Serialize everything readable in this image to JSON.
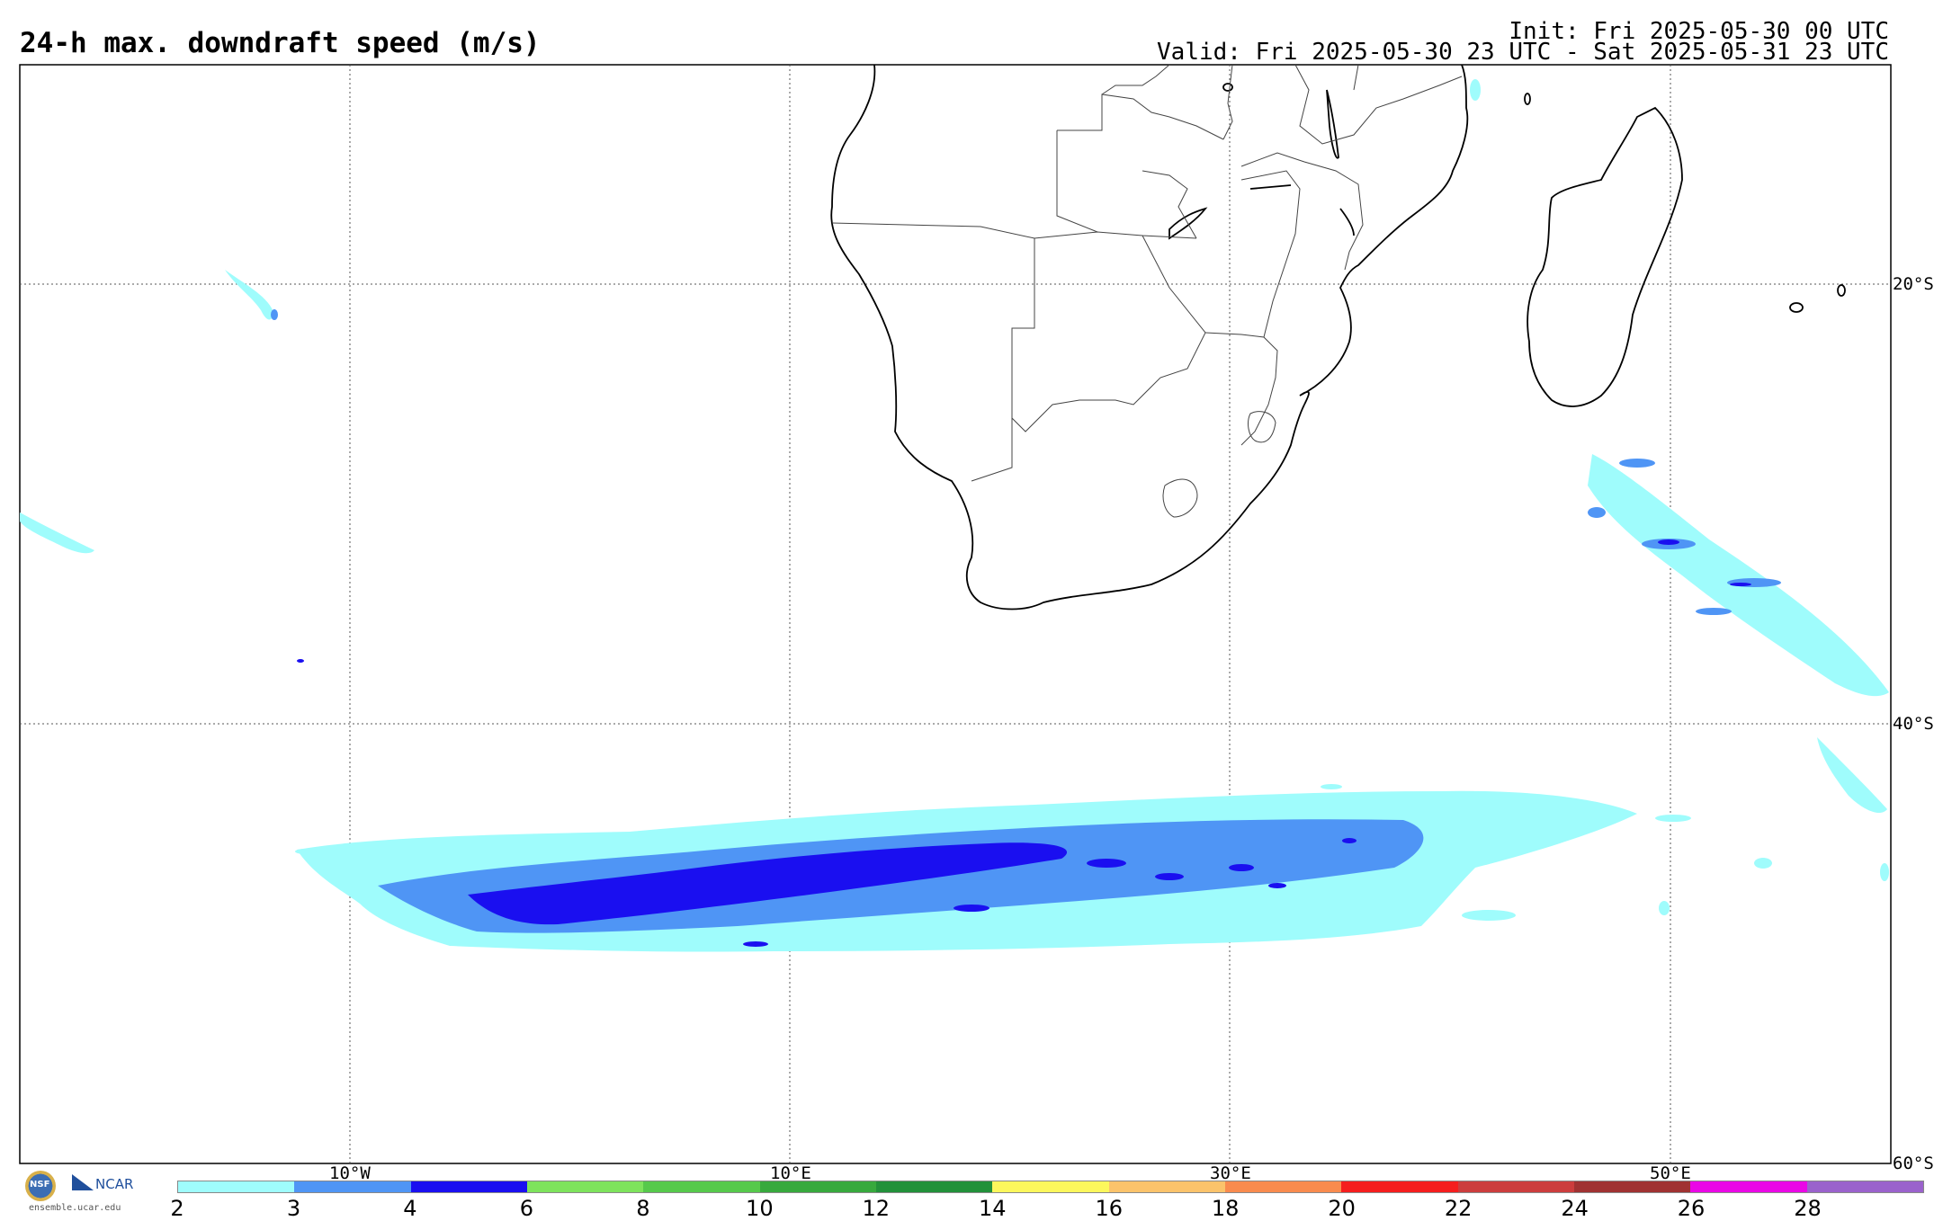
{
  "header": {
    "title": "24-h max. downdraft speed (m/s)",
    "init": "Init: Fri 2025-05-30 00 UTC",
    "valid": "Valid: Fri 2025-05-30 23 UTC - Sat 2025-05-31 23 UTC"
  },
  "map": {
    "longitude_labels": [
      "10°W",
      "10°E",
      "30°E",
      "50°E"
    ],
    "latitude_labels": [
      "20°S",
      "40°S",
      "60°S"
    ],
    "gridlines": "dotted",
    "region": "Southern Africa and South Atlantic / Indian Ocean"
  },
  "colorbar": {
    "colors": [
      "#9ffcfc",
      "#4f95f5",
      "#1a0ff0",
      "#7ee35c",
      "#56c94b",
      "#37a93d",
      "#22913a",
      "#fcf75c",
      "#fbc36b",
      "#f98b4e",
      "#f51e1e",
      "#cc3d3d",
      "#a03232",
      "#ea07e6",
      "#9a62cc"
    ],
    "tick_labels": [
      "2",
      "3",
      "4",
      "6",
      "8",
      "10",
      "12",
      "14",
      "16",
      "18",
      "20",
      "22",
      "24",
      "26",
      "28"
    ]
  },
  "logos": {
    "nsf": "NSF",
    "ncar": "NCAR",
    "url": "ensemble.ucar.edu"
  }
}
